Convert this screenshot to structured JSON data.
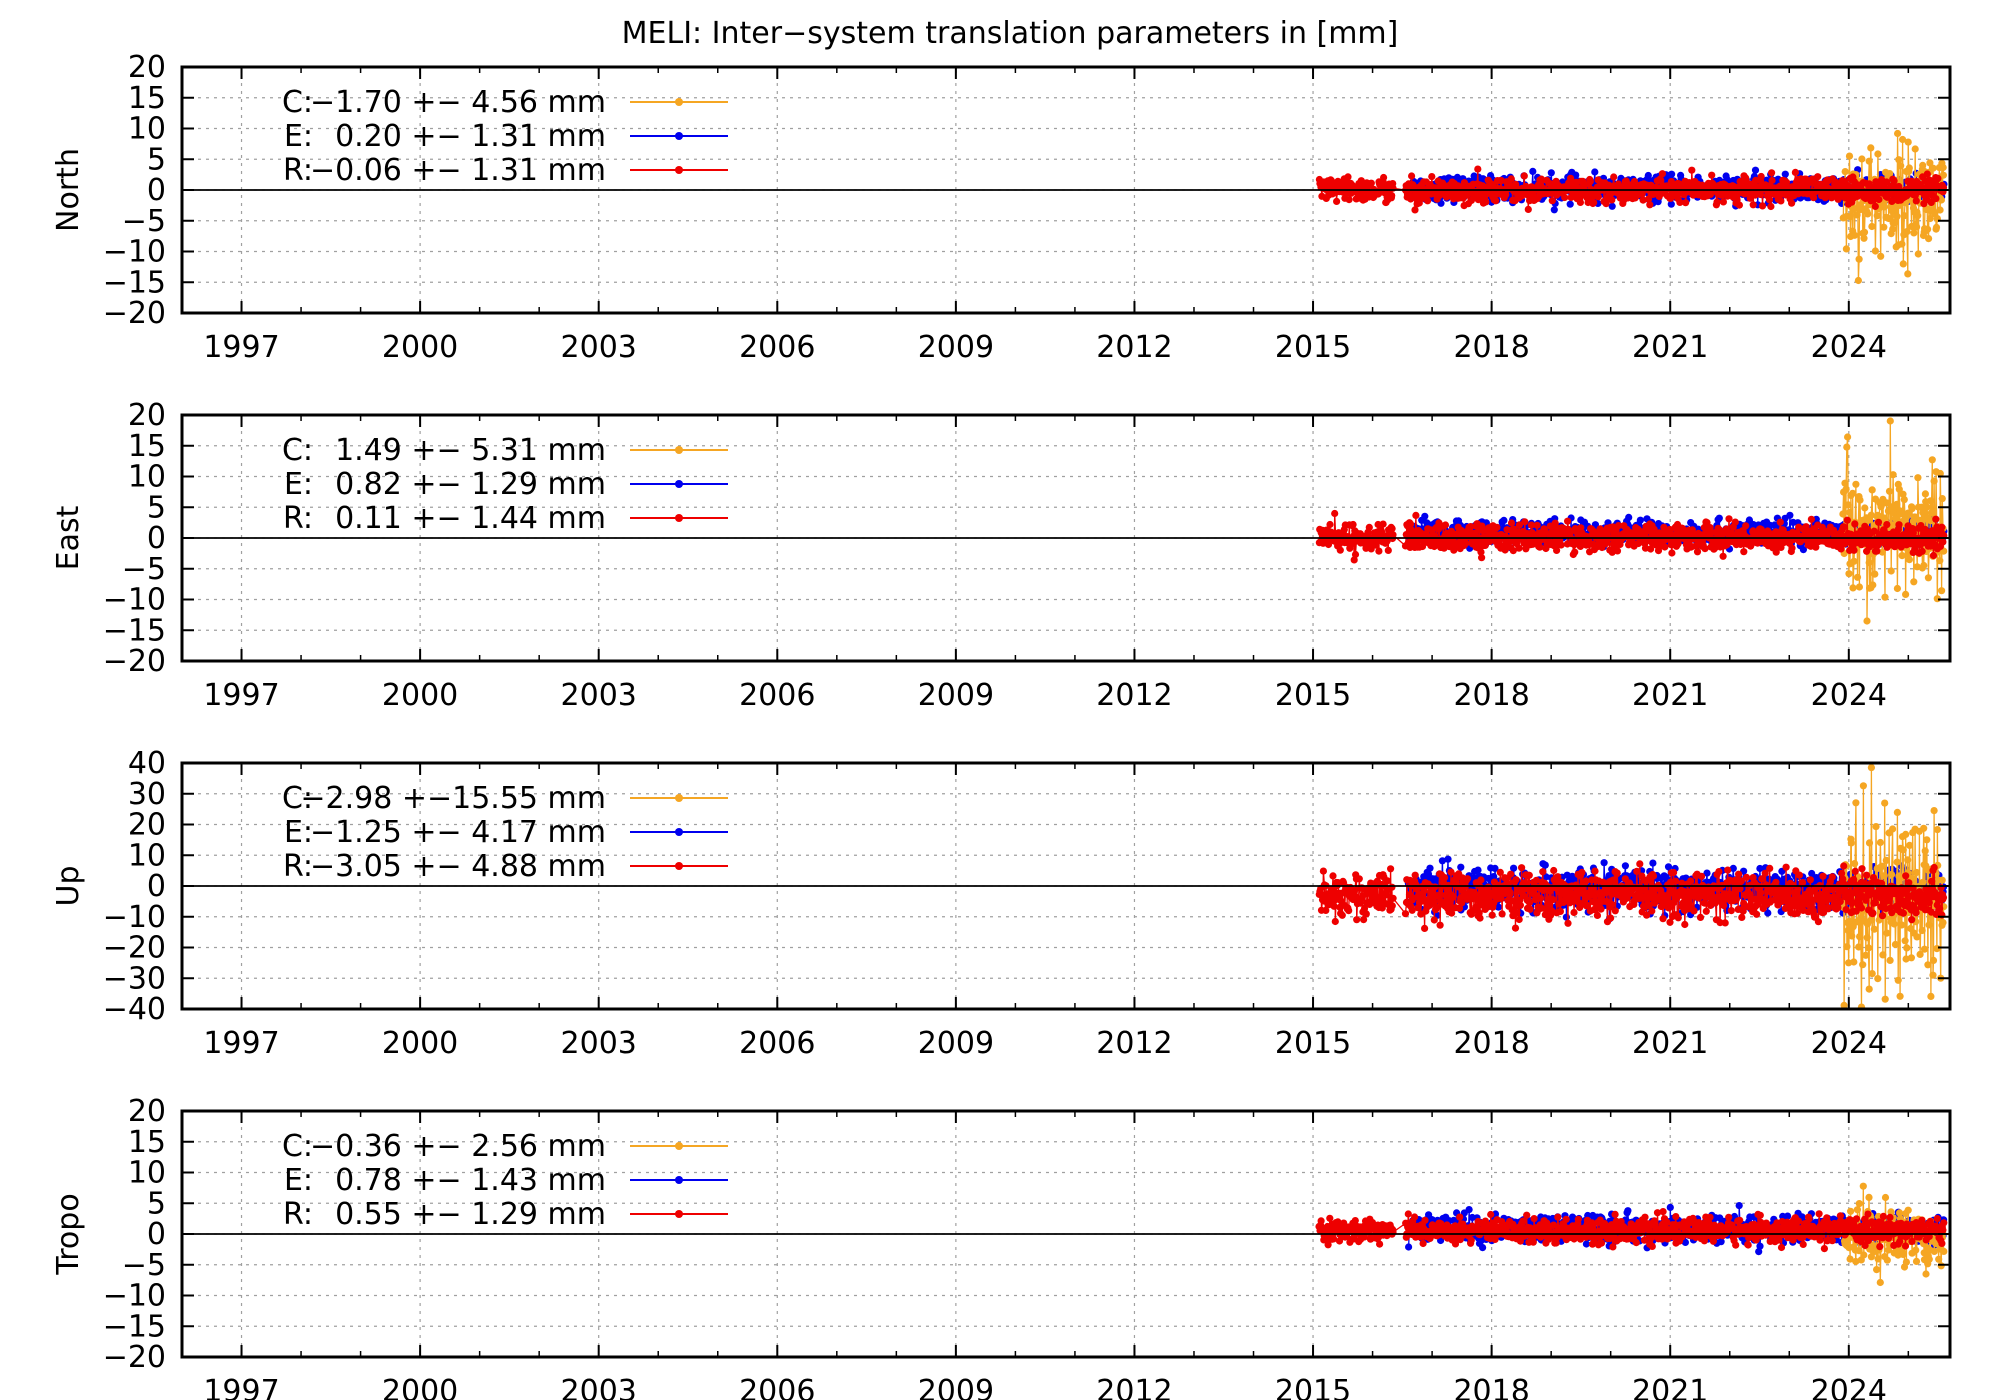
{
  "chart_data": {
    "title": "MELI: Inter−system translation parameters in [mm]",
    "type": "scatter",
    "x_ticks": [
      "1997",
      "2000",
      "2003",
      "2006",
      "2009",
      "2012",
      "2015",
      "2018",
      "2021",
      "2024"
    ],
    "x_range": [
      1996.0,
      2025.7
    ],
    "grid": true,
    "legend_position": "top-left",
    "series_styles": [
      {
        "key": "C",
        "color": "#f5a623"
      },
      {
        "key": "E",
        "color": "#0000ee"
      },
      {
        "key": "R",
        "color": "#ee0000"
      }
    ],
    "panels": [
      {
        "ylabel": "North",
        "ylim": [
          -20,
          20
        ],
        "yticks": [
          20,
          15,
          10,
          5,
          0,
          -5,
          -10,
          -15,
          -20
        ],
        "ytick_labels": [
          "20",
          "15",
          "10",
          "5",
          "0",
          "−5",
          "−10",
          "−15",
          "−20"
        ],
        "legend": [
          {
            "key": "C:",
            "text": "−1.70 +− 4.56 mm"
          },
          {
            "key": "E:",
            "text": "0.20 +− 1.31 mm"
          },
          {
            "key": "R:",
            "text": "−0.06 +− 1.31 mm"
          }
        ],
        "series": [
          {
            "name": "C",
            "start": 2023.9,
            "end": 2025.6,
            "mean": -1.7,
            "sd": 4.56
          },
          {
            "name": "E",
            "start": 2016.6,
            "end": 2025.6,
            "mean": 0.2,
            "sd": 1.31
          },
          {
            "name": "R",
            "start": 2015.1,
            "end": 2025.6,
            "mean": -0.06,
            "sd": 1.31
          }
        ]
      },
      {
        "ylabel": "East",
        "ylim": [
          -20,
          20
        ],
        "yticks": [
          20,
          15,
          10,
          5,
          0,
          -5,
          -10,
          -15,
          -20
        ],
        "ytick_labels": [
          "20",
          "15",
          "10",
          "5",
          "0",
          "−5",
          "−10",
          "−15",
          "−20"
        ],
        "legend": [
          {
            "key": "C:",
            "text": "1.49 +− 5.31 mm"
          },
          {
            "key": "E:",
            "text": "0.82 +− 1.29 mm"
          },
          {
            "key": "R:",
            "text": "0.11 +− 1.44 mm"
          }
        ],
        "series": [
          {
            "name": "C",
            "start": 2023.9,
            "end": 2025.6,
            "mean": 1.49,
            "sd": 5.31
          },
          {
            "name": "E",
            "start": 2016.6,
            "end": 2025.6,
            "mean": 0.82,
            "sd": 1.29
          },
          {
            "name": "R",
            "start": 2015.1,
            "end": 2025.6,
            "mean": 0.11,
            "sd": 1.44
          }
        ]
      },
      {
        "ylabel": "Up",
        "ylim": [
          -40,
          40
        ],
        "yticks": [
          40,
          30,
          20,
          10,
          0,
          -10,
          -20,
          -30,
          -40
        ],
        "ytick_labels": [
          "40",
          "30",
          "20",
          "10",
          "0",
          "−10",
          "−20",
          "−30",
          "−40"
        ],
        "legend": [
          {
            "key": "C:",
            "text": "−2.98 +−15.55 mm"
          },
          {
            "key": "E:",
            "text": "−1.25 +− 4.17 mm"
          },
          {
            "key": "R:",
            "text": "−3.05 +− 4.88 mm"
          }
        ],
        "series": [
          {
            "name": "C",
            "start": 2023.9,
            "end": 2025.6,
            "mean": -2.98,
            "sd": 15.55
          },
          {
            "name": "E",
            "start": 2016.6,
            "end": 2025.6,
            "mean": -1.25,
            "sd": 4.17
          },
          {
            "name": "R",
            "start": 2015.1,
            "end": 2025.6,
            "mean": -3.05,
            "sd": 4.88
          }
        ]
      },
      {
        "ylabel": "Tropo",
        "ylim": [
          -20,
          20
        ],
        "yticks": [
          20,
          15,
          10,
          5,
          0,
          -5,
          -10,
          -15,
          -20
        ],
        "ytick_labels": [
          "20",
          "15",
          "10",
          "5",
          "0",
          "−5",
          "−10",
          "−15",
          "−20"
        ],
        "legend": [
          {
            "key": "C:",
            "text": "−0.36 +− 2.56 mm"
          },
          {
            "key": "E:",
            "text": "0.78 +− 1.43 mm"
          },
          {
            "key": "R:",
            "text": "0.55 +− 1.29 mm"
          }
        ],
        "series": [
          {
            "name": "C",
            "start": 2023.9,
            "end": 2025.6,
            "mean": -0.36,
            "sd": 2.56
          },
          {
            "name": "E",
            "start": 2016.6,
            "end": 2025.6,
            "mean": 0.78,
            "sd": 1.43
          },
          {
            "name": "R",
            "start": 2015.1,
            "end": 2025.6,
            "mean": 0.55,
            "sd": 1.29
          }
        ]
      }
    ]
  }
}
